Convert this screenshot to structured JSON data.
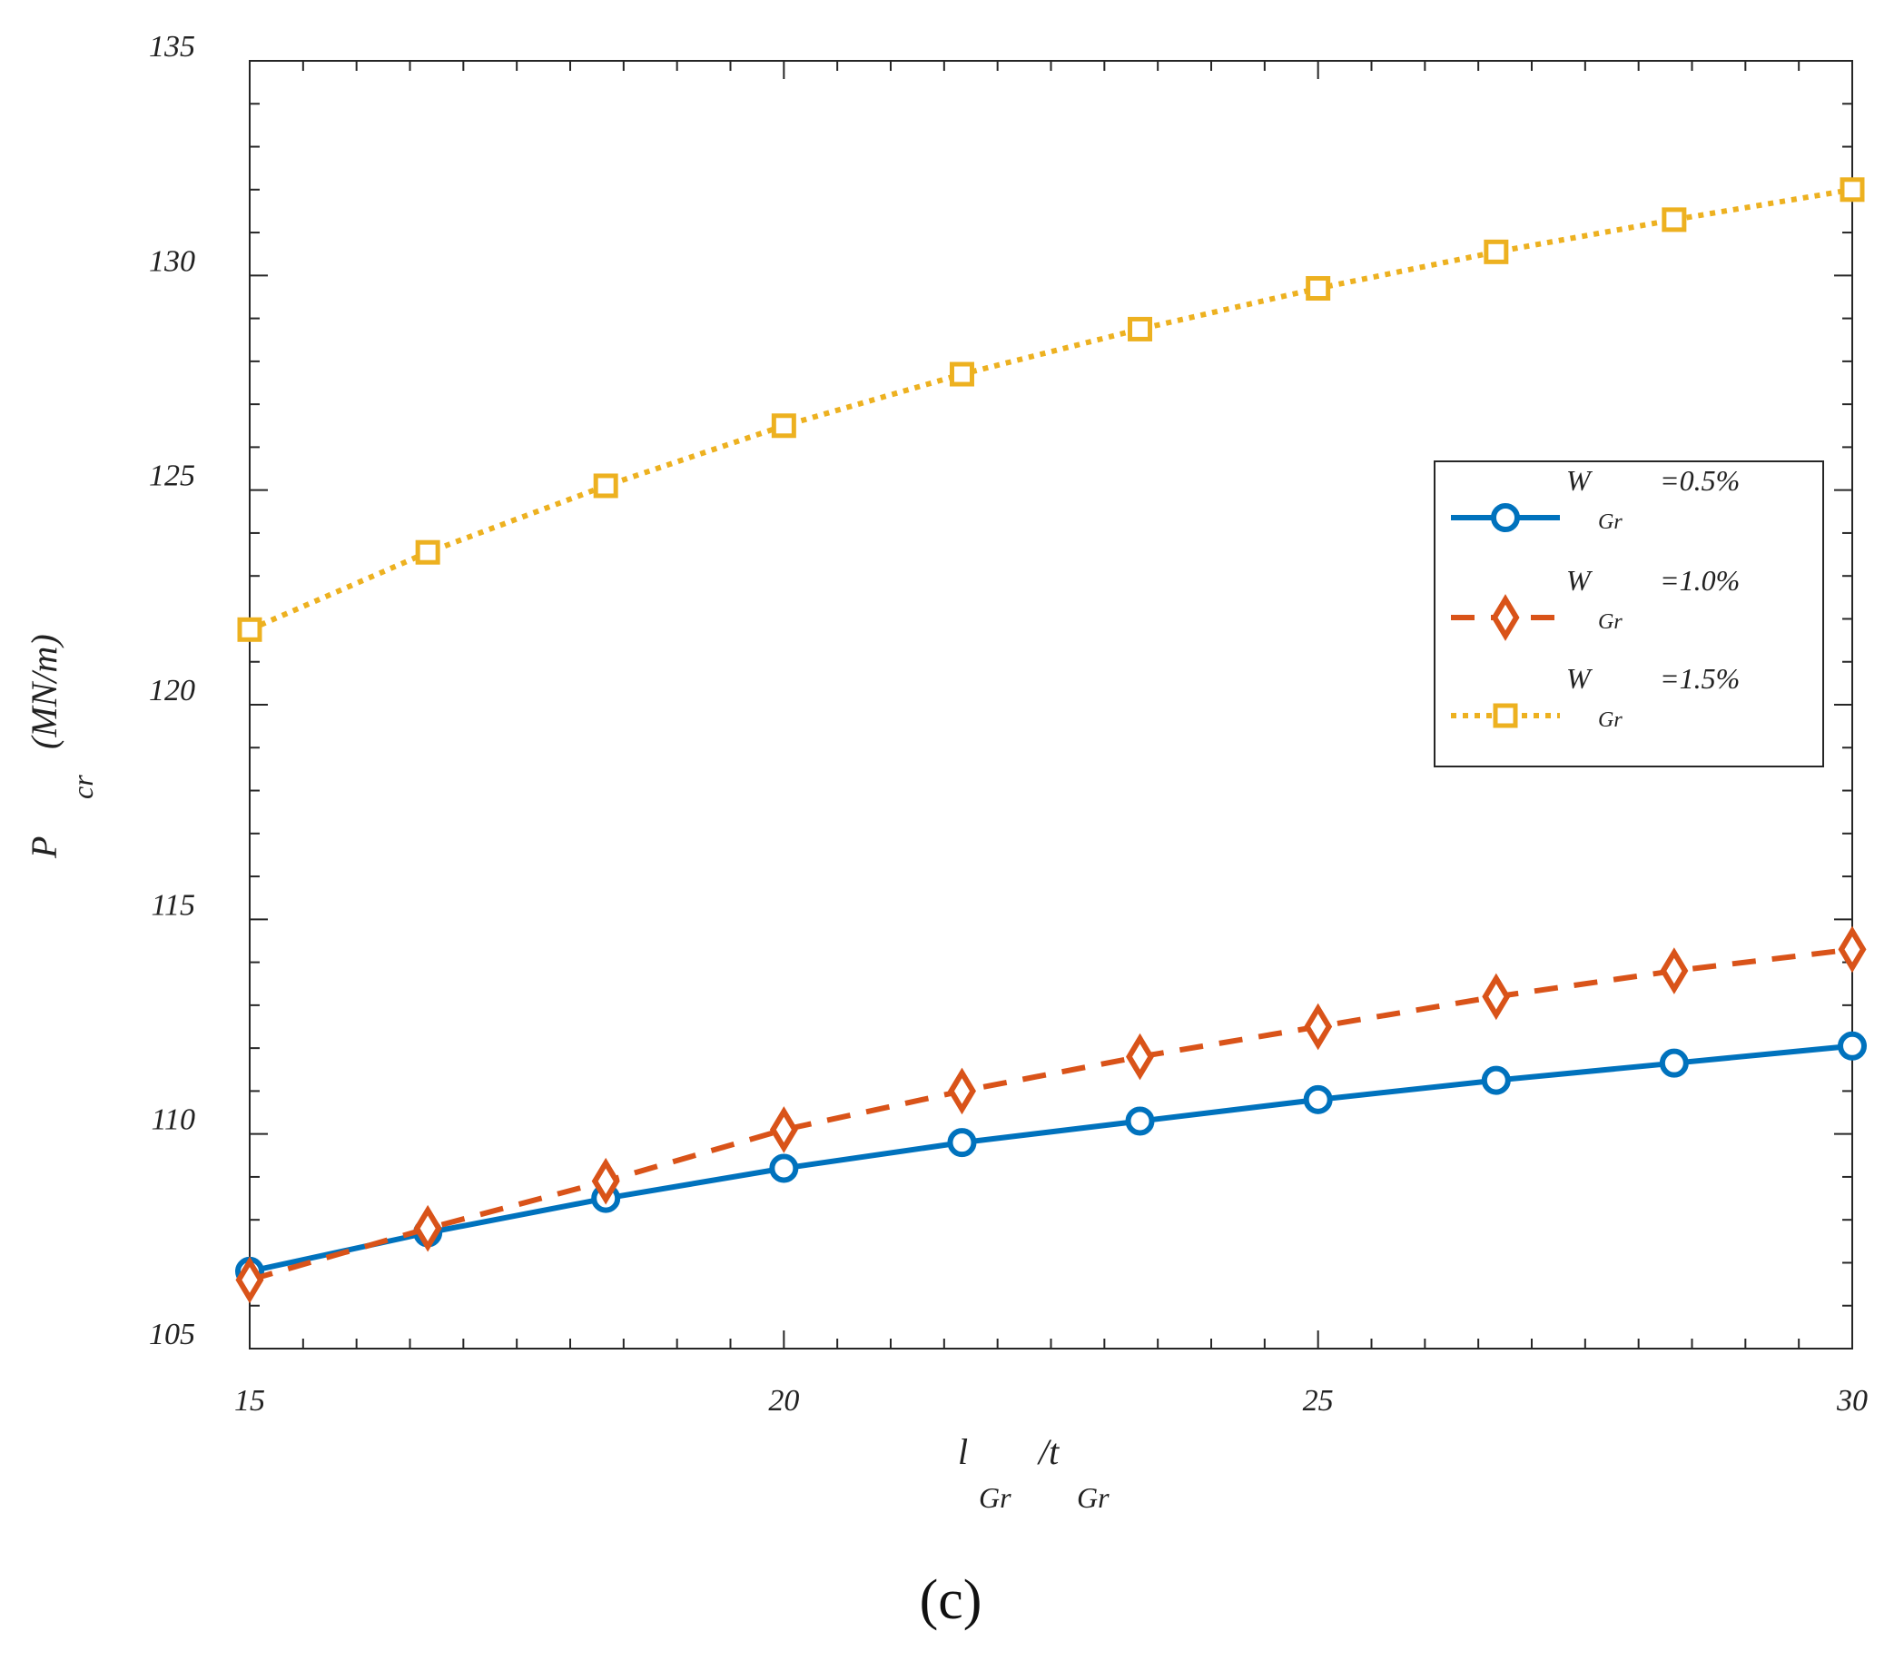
{
  "chart_data": {
    "type": "line",
    "title": "",
    "panel_label": "(c)",
    "xlabel": {
      "main": "l",
      "sub1": "Gr",
      "sep": "/t",
      "sub2": "Gr"
    },
    "ylabel": {
      "main": "P",
      "sub": "cr",
      "unit": "(MN/m)"
    },
    "xlim": [
      15,
      30
    ],
    "ylim": [
      105,
      135
    ],
    "xticks": [
      15,
      20,
      25,
      30
    ],
    "yticks": [
      105,
      110,
      115,
      120,
      125,
      130,
      135
    ],
    "grid": false,
    "legend_position": "right",
    "x": [
      15,
      16.667,
      18.333,
      20,
      21.667,
      23.333,
      25,
      26.667,
      28.333,
      30
    ],
    "series": [
      {
        "name": "W_Gr=0.5%",
        "label_main": "W",
        "label_sub": "Gr",
        "label_value": "=0.5%",
        "color": "#0072BD",
        "line_style": "solid",
        "marker": "circle",
        "values": [
          106.8,
          107.7,
          108.5,
          109.2,
          109.8,
          110.3,
          110.8,
          111.25,
          111.65,
          112.05
        ]
      },
      {
        "name": "W_Gr=1.0%",
        "label_main": "W",
        "label_sub": "Gr",
        "label_value": "=1.0%",
        "color": "#D95319",
        "line_style": "dashed",
        "marker": "diamond",
        "values": [
          106.6,
          107.8,
          108.9,
          110.1,
          111.0,
          111.8,
          112.5,
          113.2,
          113.8,
          114.3
        ]
      },
      {
        "name": "W_Gr=1.5%",
        "label_main": "W",
        "label_sub": "Gr",
        "label_value": "=1.5%",
        "color": "#EDB120",
        "line_style": "dotted",
        "marker": "square",
        "values": [
          121.75,
          123.55,
          125.1,
          126.5,
          127.7,
          128.75,
          129.7,
          130.55,
          131.3,
          132.0
        ]
      }
    ]
  }
}
